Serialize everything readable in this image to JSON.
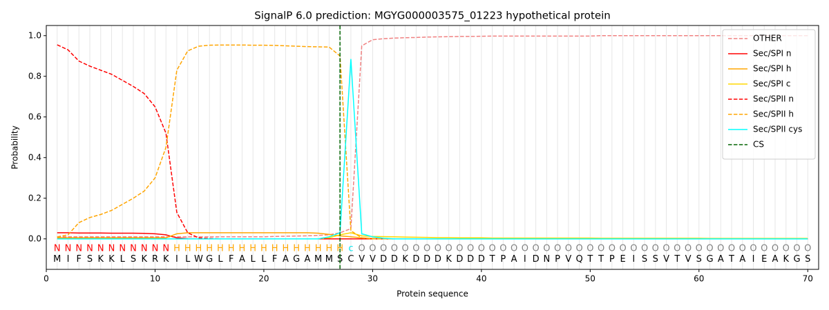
{
  "chart_data": {
    "type": "line",
    "title": "SignalP 6.0 prediction: MGYG000003575_01223 hypothetical protein",
    "xlabel": "Protein sequence",
    "ylabel": "Probability",
    "xlim": [
      0,
      71
    ],
    "ylim": [
      -0.15,
      1.05
    ],
    "xticks": [
      0,
      10,
      20,
      30,
      40,
      50,
      60,
      70
    ],
    "yticks": [
      {
        "value": 0,
        "label": "0.0"
      },
      0.2,
      0.4,
      0.6,
      0.8,
      {
        "value": 1,
        "label": "1.0"
      }
    ],
    "grid": true,
    "legend": "upper right",
    "x": [
      1,
      2,
      3,
      4,
      5,
      6,
      7,
      8,
      9,
      10,
      11,
      12,
      13,
      14,
      15,
      16,
      17,
      18,
      19,
      20,
      21,
      22,
      23,
      24,
      25,
      26,
      27,
      28,
      29,
      30,
      31,
      32,
      33,
      34,
      35,
      36,
      37,
      38,
      39,
      40,
      41,
      42,
      43,
      44,
      45,
      46,
      47,
      48,
      49,
      50,
      51,
      52,
      53,
      54,
      55,
      56,
      57,
      58,
      59,
      60,
      61,
      62,
      63,
      64,
      65,
      66,
      67,
      68,
      69,
      70
    ],
    "categories": [
      "M",
      "I",
      "F",
      "S",
      "K",
      "K",
      "L",
      "S",
      "K",
      "R",
      "K",
      "I",
      "L",
      "W",
      "G",
      "L",
      "F",
      "A",
      "L",
      "L",
      "F",
      "A",
      "G",
      "A",
      "M",
      "M",
      "S",
      "C",
      "V",
      "V",
      "D",
      "D",
      "K",
      "D",
      "D",
      "D",
      "K",
      "D",
      "D",
      "D",
      "T",
      "P",
      "A",
      "I",
      "D",
      "N",
      "P",
      "V",
      "Q",
      "T",
      "T",
      "P",
      "E",
      "I",
      "S",
      "S",
      "V",
      "T",
      "V",
      "S",
      "G",
      "A",
      "T",
      "A",
      "I",
      "E",
      "A",
      "K",
      "G",
      "S"
    ],
    "regions": [
      "N",
      "N",
      "N",
      "N",
      "N",
      "N",
      "N",
      "N",
      "N",
      "N",
      "N",
      "H",
      "H",
      "H",
      "H",
      "H",
      "H",
      "H",
      "H",
      "H",
      "H",
      "H",
      "H",
      "H",
      "H",
      "H",
      "H",
      "c",
      "O",
      "O",
      "O",
      "O",
      "O",
      "O",
      "O",
      "O",
      "O",
      "O",
      "O",
      "O",
      "O",
      "O",
      "O",
      "O",
      "O",
      "O",
      "O",
      "O",
      "O",
      "O",
      "O",
      "O",
      "O",
      "O",
      "O",
      "O",
      "O",
      "O",
      "O",
      "O",
      "O",
      "O",
      "O",
      "O",
      "O",
      "O",
      "O",
      "O",
      "O",
      "O"
    ],
    "region_colors": {
      "N": "#ff0000",
      "H": "#ffa500",
      "c": "#00e5ee",
      "O": "#808080"
    },
    "series": [
      {
        "name": "OTHER",
        "color": "#f08080",
        "dashed": true,
        "values": [
          0.01,
          0.01,
          0.01,
          0.01,
          0.01,
          0.01,
          0.01,
          0.01,
          0.01,
          0.01,
          0.01,
          0.01,
          0.01,
          0.01,
          0.01,
          0.01,
          0.01,
          0.01,
          0.01,
          0.01,
          0.012,
          0.013,
          0.014,
          0.015,
          0.017,
          0.02,
          0.03,
          0.05,
          0.95,
          0.98,
          0.985,
          0.988,
          0.99,
          0.991,
          0.993,
          0.994,
          0.995,
          0.996,
          0.996,
          0.997,
          0.998,
          0.998,
          0.998,
          0.998,
          0.998,
          0.998,
          0.998,
          0.998,
          0.998,
          0.998,
          1,
          1,
          1,
          1,
          1,
          1,
          1,
          1,
          1,
          1,
          1,
          1,
          1,
          1,
          1,
          1,
          1,
          1,
          1,
          1
        ]
      },
      {
        "name": "Sec/SPI n",
        "color": "#ff0000",
        "dashed": false,
        "values": [
          0.03,
          0.03,
          0.029,
          0.029,
          0.029,
          0.028,
          0.028,
          0.028,
          0.027,
          0.025,
          0.02,
          0.005,
          0.001,
          0,
          0,
          0,
          0,
          0,
          0,
          0,
          0,
          0,
          0,
          0,
          0,
          0,
          0,
          0,
          0,
          0,
          0,
          0,
          0,
          0,
          0,
          0,
          0,
          0,
          0,
          0,
          0,
          0,
          0,
          0,
          0,
          0,
          0,
          0,
          0,
          0,
          0,
          0,
          0,
          0,
          0,
          0,
          0,
          0,
          0,
          0,
          0,
          0,
          0,
          0,
          0,
          0,
          0,
          0,
          0,
          0
        ]
      },
      {
        "name": "Sec/SPI h",
        "color": "#ffa500",
        "dashed": false,
        "values": [
          0.005,
          0.005,
          0.005,
          0.005,
          0.005,
          0.005,
          0.005,
          0.005,
          0.005,
          0.005,
          0.005,
          0.025,
          0.03,
          0.03,
          0.03,
          0.03,
          0.03,
          0.03,
          0.03,
          0.03,
          0.03,
          0.03,
          0.03,
          0.03,
          0.028,
          0.022,
          0.015,
          0.01,
          0.005,
          0.002,
          0,
          0,
          0,
          0,
          0,
          0,
          0,
          0,
          0,
          0,
          0,
          0,
          0,
          0,
          0,
          0,
          0,
          0,
          0,
          0,
          0,
          0,
          0,
          0,
          0,
          0,
          0,
          0,
          0,
          0,
          0,
          0,
          0,
          0,
          0,
          0,
          0,
          0,
          0,
          0
        ]
      },
      {
        "name": "Sec/SPI c",
        "color": "#ffd700",
        "dashed": false,
        "values": [
          0,
          0,
          0,
          0,
          0,
          0,
          0,
          0,
          0,
          0,
          0,
          0,
          0,
          0,
          0,
          0,
          0,
          0,
          0,
          0,
          0,
          0,
          0,
          0,
          0,
          0.005,
          0.02,
          0.03,
          0.015,
          0.012,
          0.011,
          0.01,
          0.009,
          0.008,
          0.007,
          0.006,
          0.006,
          0.005,
          0.005,
          0.005,
          0.004,
          0.004,
          0.004,
          0.004,
          0.004,
          0.004,
          0.004,
          0.004,
          0.004,
          0.004,
          0.003,
          0.003,
          0.003,
          0.003,
          0.003,
          0.003,
          0.003,
          0.003,
          0.003,
          0.003,
          0.002,
          0.002,
          0.002,
          0.002,
          0.002,
          0.002,
          0.002,
          0.002,
          0.002,
          0.002
        ]
      },
      {
        "name": "Sec/SPII n",
        "color": "#ff0000",
        "dashed": true,
        "values": [
          0.955,
          0.93,
          0.875,
          0.85,
          0.83,
          0.81,
          0.78,
          0.75,
          0.715,
          0.65,
          0.52,
          0.13,
          0.03,
          0.005,
          0.002,
          0,
          0,
          0,
          0,
          0,
          0,
          0,
          0,
          0,
          0,
          0,
          0,
          0,
          0,
          0,
          0,
          0,
          0,
          0,
          0,
          0,
          0,
          0,
          0,
          0,
          0,
          0,
          0,
          0,
          0,
          0,
          0,
          0,
          0,
          0,
          0,
          0,
          0,
          0,
          0,
          0,
          0,
          0,
          0,
          0,
          0,
          0,
          0,
          0,
          0,
          0,
          0,
          0,
          0,
          0
        ]
      },
      {
        "name": "Sec/SPII h",
        "color": "#ffa500",
        "dashed": true,
        "values": [
          0.01,
          0.02,
          0.08,
          0.105,
          0.12,
          0.14,
          0.17,
          0.2,
          0.235,
          0.3,
          0.45,
          0.83,
          0.925,
          0.948,
          0.953,
          0.954,
          0.954,
          0.954,
          0.953,
          0.953,
          0.952,
          0.95,
          0.948,
          0.946,
          0.945,
          0.944,
          0.9,
          0.04,
          0.005,
          0,
          0,
          0,
          0,
          0,
          0,
          0,
          0,
          0,
          0,
          0,
          0,
          0,
          0,
          0,
          0,
          0,
          0,
          0,
          0,
          0,
          0,
          0,
          0,
          0,
          0,
          0,
          0,
          0,
          0,
          0,
          0,
          0,
          0,
          0,
          0,
          0,
          0,
          0,
          0,
          0
        ]
      },
      {
        "name": "Sec/SPII cys",
        "color": "#00ffff",
        "dashed": false,
        "values": [
          0,
          0,
          0,
          0,
          0,
          0,
          0,
          0,
          0,
          0,
          0,
          0,
          0,
          0,
          0,
          0,
          0,
          0,
          0,
          0,
          0,
          0,
          0,
          0,
          0,
          0.01,
          0.03,
          0.885,
          0.025,
          0.01,
          0.003,
          0,
          0,
          0,
          0,
          0,
          0,
          0,
          0,
          0,
          0,
          0,
          0,
          0,
          0,
          0,
          0,
          0,
          0,
          0,
          0,
          0,
          0,
          0,
          0,
          0,
          0,
          0,
          0,
          0,
          0,
          0,
          0,
          0,
          0,
          0,
          0,
          0,
          0,
          0
        ]
      }
    ],
    "vlines": [
      {
        "name": "CS",
        "color": "#006400",
        "dashed": true,
        "x": 27
      }
    ]
  }
}
